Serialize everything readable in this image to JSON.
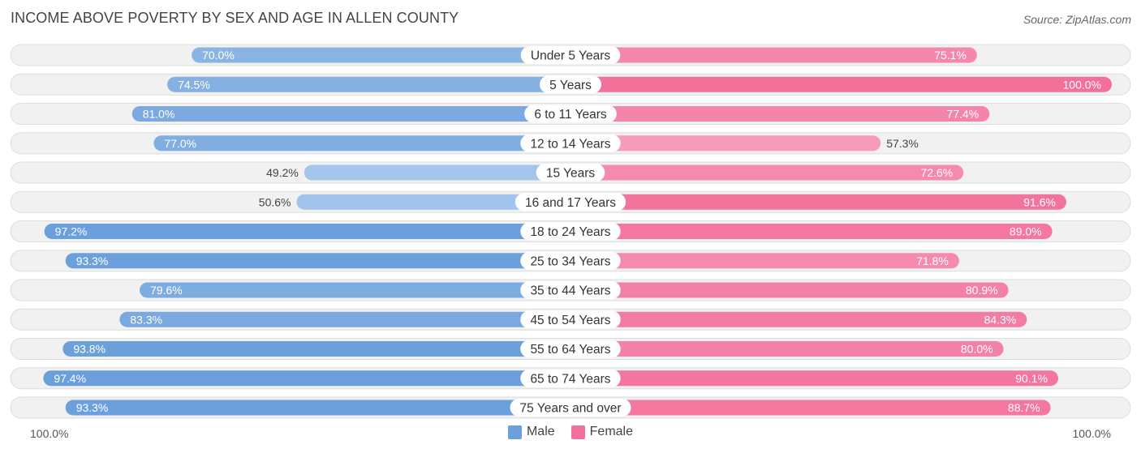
{
  "header": {
    "title": "INCOME ABOVE POVERTY BY SEX AND AGE IN ALLEN COUNTY",
    "source": "Source: ZipAtlas.com"
  },
  "colors": {
    "male_strong": "#6a9fdb",
    "male_light": "#a9c8ed",
    "female_strong": "#f2709a",
    "female_light": "#f7a9c2",
    "track": "#f1f1f1",
    "track_border": "#dddddd"
  },
  "chart_data": {
    "type": "bar",
    "orientation": "horizontal-diverging",
    "title": "INCOME ABOVE POVERTY BY SEX AND AGE IN ALLEN COUNTY",
    "categories": [
      "Under 5 Years",
      "5 Years",
      "6 to 11 Years",
      "12 to 14 Years",
      "15 Years",
      "16 and 17 Years",
      "18 to 24 Years",
      "25 to 34 Years",
      "35 to 44 Years",
      "45 to 54 Years",
      "55 to 64 Years",
      "65 to 74 Years",
      "75 Years and over"
    ],
    "series": [
      {
        "name": "Male",
        "values": [
          70.0,
          74.5,
          81.0,
          77.0,
          49.2,
          50.6,
          97.2,
          93.3,
          79.6,
          83.3,
          93.8,
          97.4,
          93.3
        ],
        "labels": [
          "70.0%",
          "74.5%",
          "81.0%",
          "77.0%",
          "49.2%",
          "50.6%",
          "97.2%",
          "93.3%",
          "79.6%",
          "83.3%",
          "93.8%",
          "97.4%",
          "93.3%"
        ]
      },
      {
        "name": "Female",
        "values": [
          75.1,
          100.0,
          77.4,
          57.3,
          72.6,
          91.6,
          89.0,
          71.8,
          80.9,
          84.3,
          80.0,
          90.1,
          88.7
        ],
        "labels": [
          "75.1%",
          "100.0%",
          "77.4%",
          "57.3%",
          "72.6%",
          "91.6%",
          "89.0%",
          "71.8%",
          "80.9%",
          "84.3%",
          "80.0%",
          "90.1%",
          "88.7%"
        ]
      }
    ],
    "xlim": [
      0,
      100
    ],
    "axis_left_label": "100.0%",
    "axis_right_label": "100.0%",
    "legend": [
      "Male",
      "Female"
    ],
    "legend_position": "bottom-center"
  }
}
